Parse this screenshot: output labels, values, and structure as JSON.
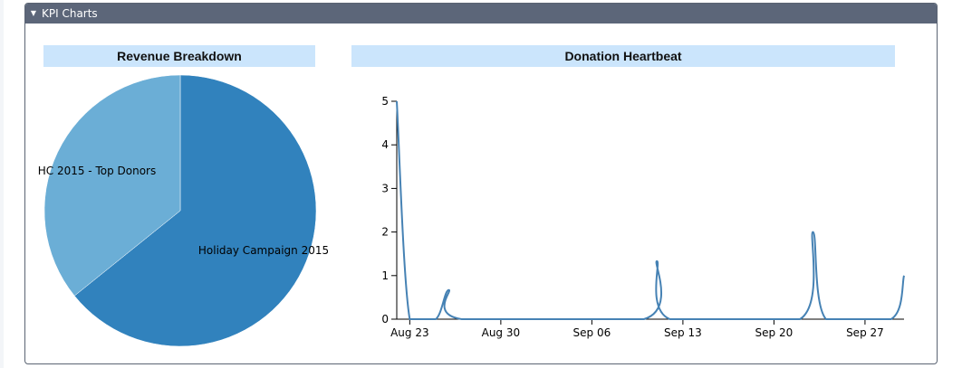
{
  "panel": {
    "title": "KPI Charts",
    "toggle_icon": "caret-down-icon"
  },
  "chart_data": [
    {
      "type": "pie",
      "title": "Revenue Breakdown",
      "categories": [
        "HC 2015 - Top Donors",
        "Holiday Campaign 2015"
      ],
      "values": [
        35.8,
        64.2
      ],
      "colors": [
        "#6baed6",
        "#3182bd"
      ],
      "legend": "none"
    },
    {
      "type": "line",
      "title": "Donation Heartbeat",
      "xlabel": "",
      "ylabel": "",
      "ylim": [
        0,
        5
      ],
      "yticks": [
        0,
        1,
        2,
        3,
        4,
        5
      ],
      "xlim": [
        "2015-08-22",
        "2015-09-30"
      ],
      "xticks": [
        "Aug 23",
        "Aug 30",
        "Sep 06",
        "Sep 13",
        "Sep 20",
        "Sep 27"
      ],
      "grid": false,
      "color": "#4682b4",
      "series": [
        {
          "x": [
            "2015-08-22",
            "2015-08-23",
            "2015-08-25",
            "2015-08-26",
            "2015-08-27",
            "2015-09-10",
            "2015-09-11",
            "2015-09-12",
            "2015-09-22",
            "2015-09-23",
            "2015-09-24",
            "2015-09-29",
            "2015-09-30"
          ],
          "values": [
            5,
            0,
            0,
            0.67,
            0,
            0,
            1.33,
            0,
            0,
            2,
            0,
            0,
            1
          ]
        }
      ]
    }
  ]
}
